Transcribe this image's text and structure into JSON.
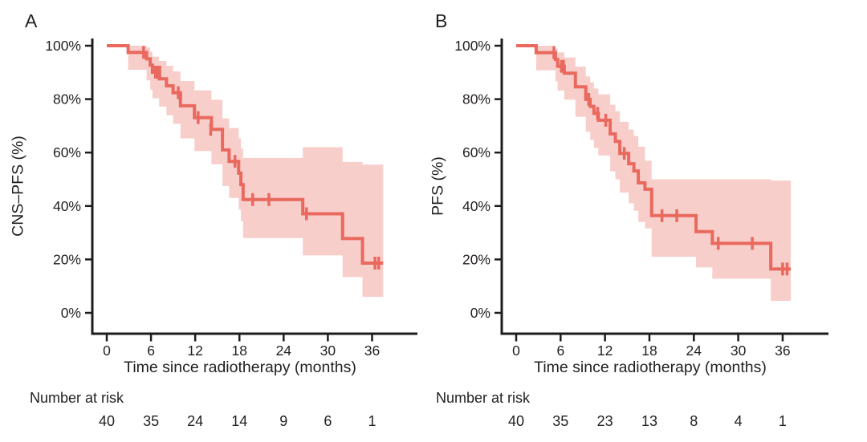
{
  "colors": {
    "km_line": "#e9695e",
    "ci_band": "#f8cecb",
    "axis": "#1d1d1b",
    "text": "#231f20",
    "background": "#ffffff"
  },
  "chart_data": [
    {
      "type": "line",
      "subtype": "kaplan-meier-step",
      "title": "A",
      "xlabel": "Time since radiotherapy (months)",
      "ylabel": "CNS–PFS (%)",
      "xlim": [
        0,
        39
      ],
      "ylim": [
        0,
        100
      ],
      "xticks": [
        0,
        6,
        12,
        18,
        24,
        30,
        36
      ],
      "ytick_values": [
        0,
        20,
        40,
        60,
        80,
        100
      ],
      "ytick_labels": [
        "0%",
        "20%",
        "40%",
        "60%",
        "80%",
        "100%"
      ],
      "grid": false,
      "legend": "none",
      "end_time": 37.5,
      "steps": [
        {
          "t": 0.0,
          "s": 100.0,
          "lo": 100.0,
          "hi": 100.0
        },
        {
          "t": 2.9,
          "s": 97.5,
          "lo": 91.0,
          "hi": 100.0
        },
        {
          "t": 5.4,
          "s": 95.1,
          "lo": 87.0,
          "hi": 99.3
        },
        {
          "t": 5.9,
          "s": 92.7,
          "lo": 83.6,
          "hi": 97.8
        },
        {
          "t": 6.2,
          "s": 90.1,
          "lo": 80.3,
          "hi": 95.9
        },
        {
          "t": 7.1,
          "s": 87.6,
          "lo": 77.2,
          "hi": 94.3
        },
        {
          "t": 8.1,
          "s": 85.0,
          "lo": 74.0,
          "hi": 92.5
        },
        {
          "t": 9.0,
          "s": 82.4,
          "lo": 70.8,
          "hi": 90.4
        },
        {
          "t": 10.0,
          "s": 77.5,
          "lo": 65.3,
          "hi": 86.8
        },
        {
          "t": 11.9,
          "s": 73.1,
          "lo": 60.6,
          "hi": 83.3
        },
        {
          "t": 14.2,
          "s": 68.7,
          "lo": 55.6,
          "hi": 79.8
        },
        {
          "t": 15.7,
          "s": 61.0,
          "lo": 47.5,
          "hi": 72.8
        },
        {
          "t": 16.6,
          "s": 56.7,
          "lo": 43.0,
          "hi": 69.2
        },
        {
          "t": 17.9,
          "s": 52.3,
          "lo": 38.6,
          "hi": 65.3
        },
        {
          "t": 18.2,
          "s": 48.0,
          "lo": 34.3,
          "hi": 61.5
        },
        {
          "t": 18.5,
          "s": 42.4,
          "lo": 28.0,
          "hi": 58.0
        },
        {
          "t": 26.6,
          "s": 37.1,
          "lo": 21.5,
          "hi": 62.0
        },
        {
          "t": 32.0,
          "s": 27.8,
          "lo": 13.4,
          "hi": 56.5
        },
        {
          "t": 34.7,
          "s": 18.6,
          "lo": 6.0,
          "hi": 55.5
        }
      ],
      "censor_marks": [
        {
          "t": 5.0,
          "s": 97.5
        },
        {
          "t": 6.6,
          "s": 90.1
        },
        {
          "t": 6.9,
          "s": 90.1
        },
        {
          "t": 7.2,
          "s": 90.1
        },
        {
          "t": 9.7,
          "s": 82.4
        },
        {
          "t": 12.4,
          "s": 73.1
        },
        {
          "t": 14.1,
          "s": 68.7
        },
        {
          "t": 17.4,
          "s": 56.7
        },
        {
          "t": 19.8,
          "s": 42.4
        },
        {
          "t": 22.0,
          "s": 42.4
        },
        {
          "t": 27.1,
          "s": 37.1
        },
        {
          "t": 36.4,
          "s": 18.6
        },
        {
          "t": 36.9,
          "s": 18.6
        }
      ],
      "number_at_risk": {
        "label": "Number at risk",
        "times": [
          0,
          6,
          12,
          18,
          24,
          30,
          36
        ],
        "counts": [
          "40",
          "35",
          "24",
          "14",
          "9",
          "6",
          "1"
        ]
      }
    },
    {
      "type": "line",
      "subtype": "kaplan-meier-step",
      "title": "B",
      "xlabel": "Time since radiotherapy (months)",
      "ylabel": "PFS (%)",
      "xlim": [
        0,
        39
      ],
      "ylim": [
        0,
        100
      ],
      "xticks": [
        0,
        6,
        12,
        18,
        24,
        30,
        36
      ],
      "ytick_values": [
        0,
        20,
        40,
        60,
        80,
        100
      ],
      "ytick_labels": [
        "0%",
        "20%",
        "40%",
        "60%",
        "80%",
        "100%"
      ],
      "grid": false,
      "legend": "none",
      "end_time": 37.1,
      "steps": [
        {
          "t": 0.0,
          "s": 100.0,
          "lo": 100.0,
          "hi": 100.0
        },
        {
          "t": 2.7,
          "s": 97.4,
          "lo": 90.8,
          "hi": 100.0
        },
        {
          "t": 5.3,
          "s": 94.9,
          "lo": 86.7,
          "hi": 98.9
        },
        {
          "t": 5.6,
          "s": 92.3,
          "lo": 83.2,
          "hi": 97.5
        },
        {
          "t": 6.5,
          "s": 89.7,
          "lo": 79.8,
          "hi": 95.6
        },
        {
          "t": 8.0,
          "s": 84.6,
          "lo": 73.4,
          "hi": 92.2
        },
        {
          "t": 9.4,
          "s": 79.9,
          "lo": 67.8,
          "hi": 88.5
        },
        {
          "t": 10.0,
          "s": 77.3,
          "lo": 64.8,
          "hi": 86.3
        },
        {
          "t": 10.5,
          "s": 74.7,
          "lo": 61.8,
          "hi": 84.0
        },
        {
          "t": 11.1,
          "s": 72.1,
          "lo": 58.9,
          "hi": 81.8
        },
        {
          "t": 12.7,
          "s": 67.0,
          "lo": 53.0,
          "hi": 77.9
        },
        {
          "t": 13.4,
          "s": 64.2,
          "lo": 50.0,
          "hi": 75.5
        },
        {
          "t": 14.0,
          "s": 59.7,
          "lo": 45.0,
          "hi": 71.5
        },
        {
          "t": 15.2,
          "s": 55.8,
          "lo": 41.0,
          "hi": 68.6
        },
        {
          "t": 15.9,
          "s": 53.1,
          "lo": 38.2,
          "hi": 66.2
        },
        {
          "t": 16.5,
          "s": 48.7,
          "lo": 34.0,
          "hi": 62.2
        },
        {
          "t": 17.4,
          "s": 46.3,
          "lo": 31.6,
          "hi": 57.0
        },
        {
          "t": 18.3,
          "s": 36.4,
          "lo": 21.0,
          "hi": 50.0
        },
        {
          "t": 24.3,
          "s": 30.4,
          "lo": 17.0,
          "hi": 50.0
        },
        {
          "t": 26.5,
          "s": 26.0,
          "lo": 12.8,
          "hi": 50.0
        },
        {
          "t": 34.4,
          "s": 16.4,
          "lo": 4.5,
          "hi": 49.5
        }
      ],
      "censor_marks": [
        {
          "t": 5.1,
          "s": 97.4
        },
        {
          "t": 6.1,
          "s": 92.3
        },
        {
          "t": 6.4,
          "s": 92.3
        },
        {
          "t": 9.8,
          "s": 79.9
        },
        {
          "t": 11.0,
          "s": 74.7
        },
        {
          "t": 12.1,
          "s": 72.1
        },
        {
          "t": 14.6,
          "s": 59.7
        },
        {
          "t": 19.7,
          "s": 36.4
        },
        {
          "t": 21.7,
          "s": 36.4
        },
        {
          "t": 27.3,
          "s": 26.0
        },
        {
          "t": 31.9,
          "s": 26.0
        },
        {
          "t": 36.0,
          "s": 16.4
        },
        {
          "t": 36.6,
          "s": 16.4
        }
      ],
      "number_at_risk": {
        "label": "Number at risk",
        "times": [
          0,
          6,
          12,
          18,
          24,
          30,
          36
        ],
        "counts": [
          "40",
          "35",
          "23",
          "13",
          "8",
          "4",
          "1"
        ]
      }
    }
  ]
}
